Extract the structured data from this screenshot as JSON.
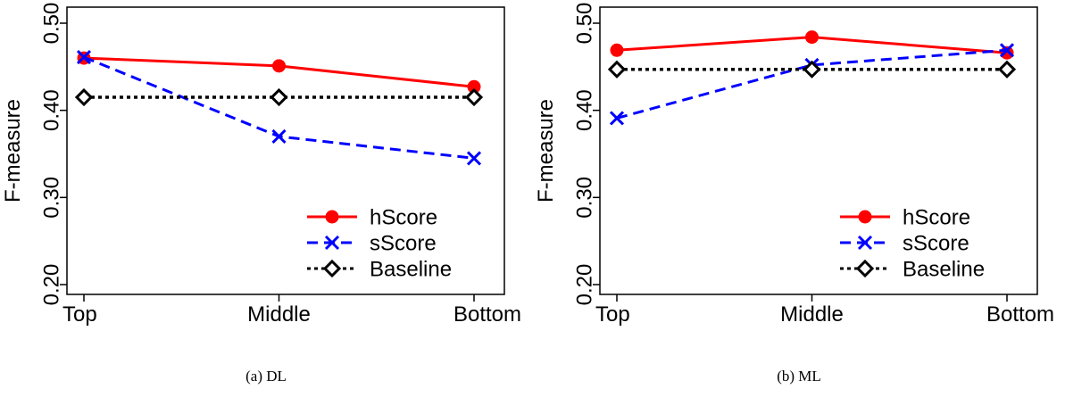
{
  "chart_data": [
    {
      "type": "line",
      "caption": "(a) DL",
      "categories": [
        "Top",
        "Middle",
        "Bottom"
      ],
      "ylabel": "F-measure",
      "ylim": [
        0.2,
        0.5
      ],
      "yticks": [
        "0.20",
        "0.30",
        "0.40",
        "0.50"
      ],
      "legend_position": "bottom-right",
      "series": [
        {
          "name": "hScore",
          "values": [
            0.46,
            0.451,
            0.427
          ],
          "color": "#ff0000",
          "dash": "solid",
          "marker": "circle"
        },
        {
          "name": "sScore",
          "values": [
            0.461,
            0.37,
            0.345
          ],
          "color": "#0000ff",
          "dash": "dashed",
          "marker": "x"
        },
        {
          "name": "Baseline",
          "values": [
            0.415,
            0.415,
            0.415
          ],
          "color": "#000000",
          "dash": "dotted",
          "marker": "diamond"
        }
      ]
    },
    {
      "type": "line",
      "caption": "(b) ML",
      "categories": [
        "Top",
        "Middle",
        "Bottom"
      ],
      "ylabel": "F-measure",
      "ylim": [
        0.2,
        0.5
      ],
      "yticks": [
        "0.20",
        "0.30",
        "0.40",
        "0.50"
      ],
      "legend_position": "bottom-right",
      "series": [
        {
          "name": "hScore",
          "values": [
            0.469,
            0.484,
            0.466
          ],
          "color": "#ff0000",
          "dash": "solid",
          "marker": "circle"
        },
        {
          "name": "sScore",
          "values": [
            0.391,
            0.452,
            0.469
          ],
          "color": "#0000ff",
          "dash": "dashed",
          "marker": "x"
        },
        {
          "name": "Baseline",
          "values": [
            0.447,
            0.447,
            0.447
          ],
          "color": "#000000",
          "dash": "dotted",
          "marker": "diamond"
        }
      ]
    }
  ]
}
